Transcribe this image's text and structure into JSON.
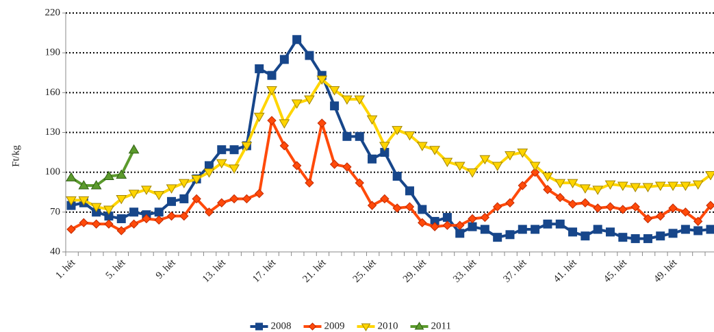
{
  "chart_data": {
    "type": "line",
    "y_label": "Ft/kg",
    "categories": [
      "1. hét",
      null,
      null,
      null,
      "5. hét",
      null,
      null,
      null,
      "9. hét",
      null,
      null,
      null,
      "13. hét",
      null,
      null,
      null,
      "17. hét",
      null,
      null,
      null,
      "21. hét",
      null,
      null,
      null,
      "25. hét",
      null,
      null,
      null,
      "29. hét",
      null,
      null,
      null,
      "33. hét",
      null,
      null,
      null,
      "37. hét",
      null,
      null,
      null,
      "41. hét",
      null,
      null,
      null,
      "45. hét",
      null,
      null,
      null,
      "49. hét",
      null,
      null,
      null
    ],
    "ylim": [
      40,
      220
    ],
    "yticks": [
      40,
      70,
      100,
      130,
      160,
      190,
      220
    ],
    "grid": true,
    "legend": "bottom",
    "series": [
      {
        "name": "2008",
        "color": "#17468a",
        "marker": "square",
        "values": [
          75,
          77,
          70,
          67,
          65,
          70,
          68,
          70,
          78,
          80,
          95,
          105,
          117,
          117,
          120,
          178,
          173,
          185,
          200,
          188,
          173,
          150,
          127,
          127,
          110,
          115,
          97,
          86,
          72,
          63,
          66,
          54,
          59,
          57,
          51,
          53,
          57,
          57,
          61,
          61,
          55,
          52,
          57,
          55,
          51,
          50,
          50,
          52,
          54,
          57,
          56,
          57
        ]
      },
      {
        "name": "2009",
        "color": "#ff4a0a",
        "marker": "diamond",
        "values": [
          57,
          62,
          61,
          61,
          56,
          61,
          65,
          64,
          67,
          67,
          80,
          70,
          77,
          80,
          80,
          84,
          139,
          120,
          105,
          92,
          137,
          106,
          104,
          92,
          75,
          80,
          73,
          74,
          62,
          59,
          60,
          60,
          65,
          66,
          74,
          77,
          90,
          100,
          87,
          81,
          76,
          77,
          73,
          74,
          72,
          74,
          65,
          67,
          73,
          70,
          63,
          75
        ]
      },
      {
        "name": "2010",
        "color": "#ffd500",
        "marker": "triangle-down",
        "values": [
          79,
          79,
          74,
          72,
          80,
          84,
          87,
          83,
          88,
          92,
          95,
          100,
          107,
          103,
          120,
          142,
          162,
          137,
          152,
          155,
          170,
          162,
          155,
          155,
          140,
          120,
          132,
          128,
          120,
          117,
          108,
          105,
          100,
          110,
          105,
          113,
          115,
          105,
          97,
          92,
          92,
          88,
          87,
          91,
          90,
          89,
          89,
          90,
          90,
          90,
          91,
          98
        ]
      },
      {
        "name": "2011",
        "color": "#5b9a2c",
        "marker": "triangle-up",
        "values": [
          96,
          90,
          90,
          97,
          98,
          117,
          null,
          null,
          null,
          null,
          null,
          null,
          null,
          null,
          null,
          null,
          null,
          null,
          null,
          null,
          null,
          null,
          null,
          null,
          null,
          null,
          null,
          null,
          null,
          null,
          null,
          null,
          null,
          null,
          null,
          null,
          null,
          null,
          null,
          null,
          null,
          null,
          null,
          null,
          null,
          null,
          null,
          null,
          null,
          null,
          null,
          null
        ]
      }
    ]
  }
}
